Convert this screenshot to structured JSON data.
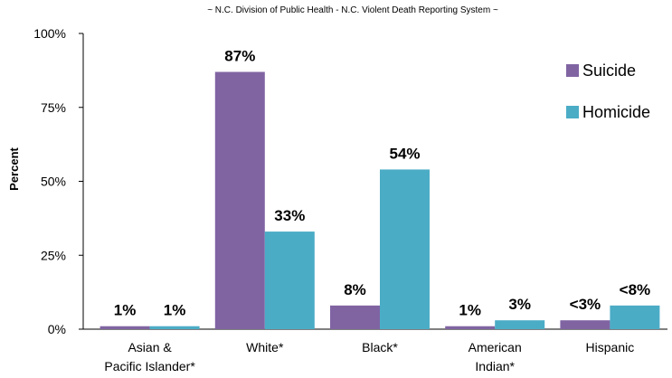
{
  "chart_data": {
    "type": "bar",
    "subtitle": "~ N.C. Division of Public Health - N.C. Violent Death Reporting System ~",
    "ylabel": "Percent",
    "ylim": [
      0,
      100
    ],
    "yticks": [
      "0%",
      "25%",
      "50%",
      "75%",
      "100%"
    ],
    "categories": [
      [
        "Asian &",
        "Pacific Islander*"
      ],
      [
        "White*"
      ],
      [
        "Black*"
      ],
      [
        "American",
        "Indian*"
      ],
      [
        "Hispanic"
      ]
    ],
    "series": [
      {
        "name": "Suicide",
        "color": "#8064a2",
        "values": [
          1,
          87,
          8,
          1,
          3
        ],
        "labels": [
          "1%",
          "87%",
          "8%",
          "1%",
          "<3%"
        ]
      },
      {
        "name": "Homicide",
        "color": "#4bacc6",
        "values": [
          1,
          33,
          54,
          3,
          8
        ],
        "labels": [
          "1%",
          "33%",
          "54%",
          "3%",
          "<8%"
        ]
      }
    ],
    "legend_position": "right",
    "grid": false
  }
}
